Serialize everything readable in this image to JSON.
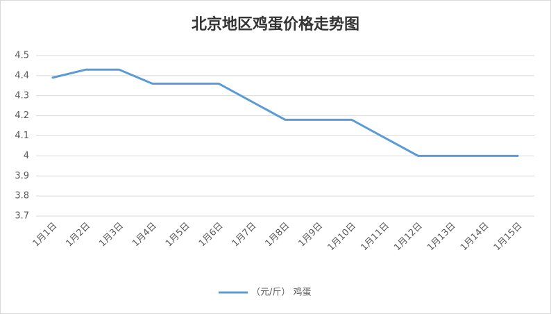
{
  "chart_data": {
    "type": "line",
    "title": "北京地区鸡蛋价格走势图",
    "categories": [
      "1月1日",
      "1月2日",
      "1月3日",
      "1月4日",
      "1月5日",
      "1月6日",
      "1月7日",
      "1月8日",
      "1月9日",
      "1月10日",
      "1月11日",
      "1月12日",
      "1月13日",
      "1月14日",
      "1月15日"
    ],
    "series": [
      {
        "name": "（元/斤） 鸡蛋",
        "color": "#5b9bd5",
        "values": [
          4.39,
          4.43,
          4.43,
          4.36,
          4.36,
          4.36,
          4.27,
          4.18,
          4.18,
          4.18,
          4.09,
          4.0,
          4.0,
          4.0,
          4.0
        ]
      }
    ],
    "ylim": [
      3.7,
      4.5
    ],
    "yticks": [
      3.7,
      3.8,
      3.9,
      4,
      4.1,
      4.2,
      4.3,
      4.4,
      4.5
    ],
    "grid": true,
    "legend": "bottom"
  }
}
